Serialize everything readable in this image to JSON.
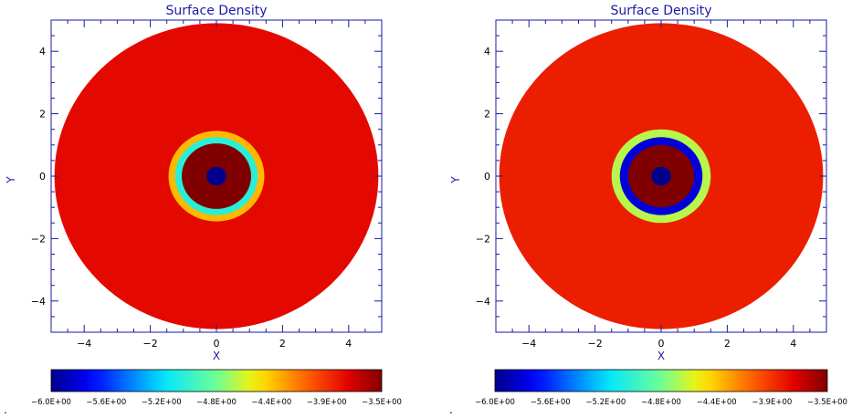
{
  "chart_data": [
    {
      "type": "heatmap",
      "title": "Surface Density",
      "xlabel": "X",
      "ylabel": "Y",
      "xlim": [
        -5,
        5
      ],
      "ylim": [
        -5,
        5
      ],
      "xticks": [
        -4,
        -2,
        0,
        2,
        4
      ],
      "yticks": [
        -4,
        -2,
        0,
        2,
        4
      ],
      "colorbar_ticks": [
        "-6.0E+00",
        "-5.6E+00",
        "-5.2E+00",
        "-4.8E+00",
        "-4.4E+00",
        "-3.9E+00",
        "-3.5E+00"
      ],
      "colorbar_range": [
        -6.0,
        -3.5
      ],
      "disk": {
        "outer_radius": 4.9,
        "background_value": -3.78,
        "rings": [
          {
            "r_in": 0.0,
            "r_out": 0.3,
            "value": -6.0
          },
          {
            "r_in": 0.3,
            "r_out": 1.05,
            "value": -3.5
          },
          {
            "r_in": 1.05,
            "r_out": 1.25,
            "value": -5.0
          },
          {
            "r_in": 1.25,
            "r_out": 1.45,
            "value": -4.3
          }
        ]
      },
      "mark": "."
    },
    {
      "type": "heatmap",
      "title": "Surface Density",
      "xlabel": "X",
      "ylabel": "Y",
      "xlim": [
        -5,
        5
      ],
      "ylim": [
        -5,
        5
      ],
      "xticks": [
        -4,
        -2,
        0,
        2,
        4
      ],
      "yticks": [
        -4,
        -2,
        0,
        2,
        4
      ],
      "colorbar_ticks": [
        "-6.0E+00",
        "-5.6E+00",
        "-5.2E+00",
        "-4.8E+00",
        "-4.4E+00",
        "-3.9E+00",
        "-3.5E+00"
      ],
      "colorbar_range": [
        -6.0,
        -3.5
      ],
      "disk": {
        "outer_radius": 4.9,
        "background_value": -3.85,
        "rings": [
          {
            "r_in": 0.0,
            "r_out": 0.3,
            "value": -6.0
          },
          {
            "r_in": 0.3,
            "r_out": 1.0,
            "value": -3.5
          },
          {
            "r_in": 1.0,
            "r_out": 1.25,
            "value": -5.8
          },
          {
            "r_in": 1.25,
            "r_out": 1.5,
            "value": -4.6
          }
        ]
      },
      "mark": "."
    }
  ]
}
